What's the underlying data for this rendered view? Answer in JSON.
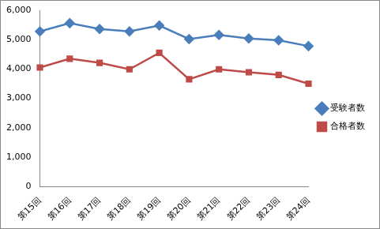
{
  "chart_data": {
    "type": "line",
    "categories": [
      "第15回",
      "第16回",
      "第17回",
      "第18回",
      "第19回",
      "第20回",
      "第21回",
      "第22回",
      "第23回",
      "第24回"
    ],
    "series": [
      {
        "name": "受験者数",
        "color": "#4a7ebb",
        "marker": "diamond",
        "values": [
          5280,
          5560,
          5360,
          5280,
          5480,
          5020,
          5160,
          5040,
          4980,
          4780
        ]
      },
      {
        "name": "合格者数",
        "color": "#be4b48",
        "marker": "square",
        "values": [
          4050,
          4350,
          4210,
          3990,
          4550,
          3650,
          3990,
          3890,
          3800,
          3500
        ]
      }
    ],
    "ylim": [
      0,
      6000
    ],
    "yticks": [
      0,
      {
        "value": 1000,
        "label": "1,000"
      },
      {
        "value": 2000,
        "label": "2,000"
      },
      {
        "value": 3000,
        "label": "3,000"
      },
      {
        "value": 4000,
        "label": "4,000"
      },
      {
        "value": 5000,
        "label": "5,000"
      },
      {
        "value": 6000,
        "label": "6,000"
      }
    ],
    "grid": false,
    "legend": "right"
  }
}
